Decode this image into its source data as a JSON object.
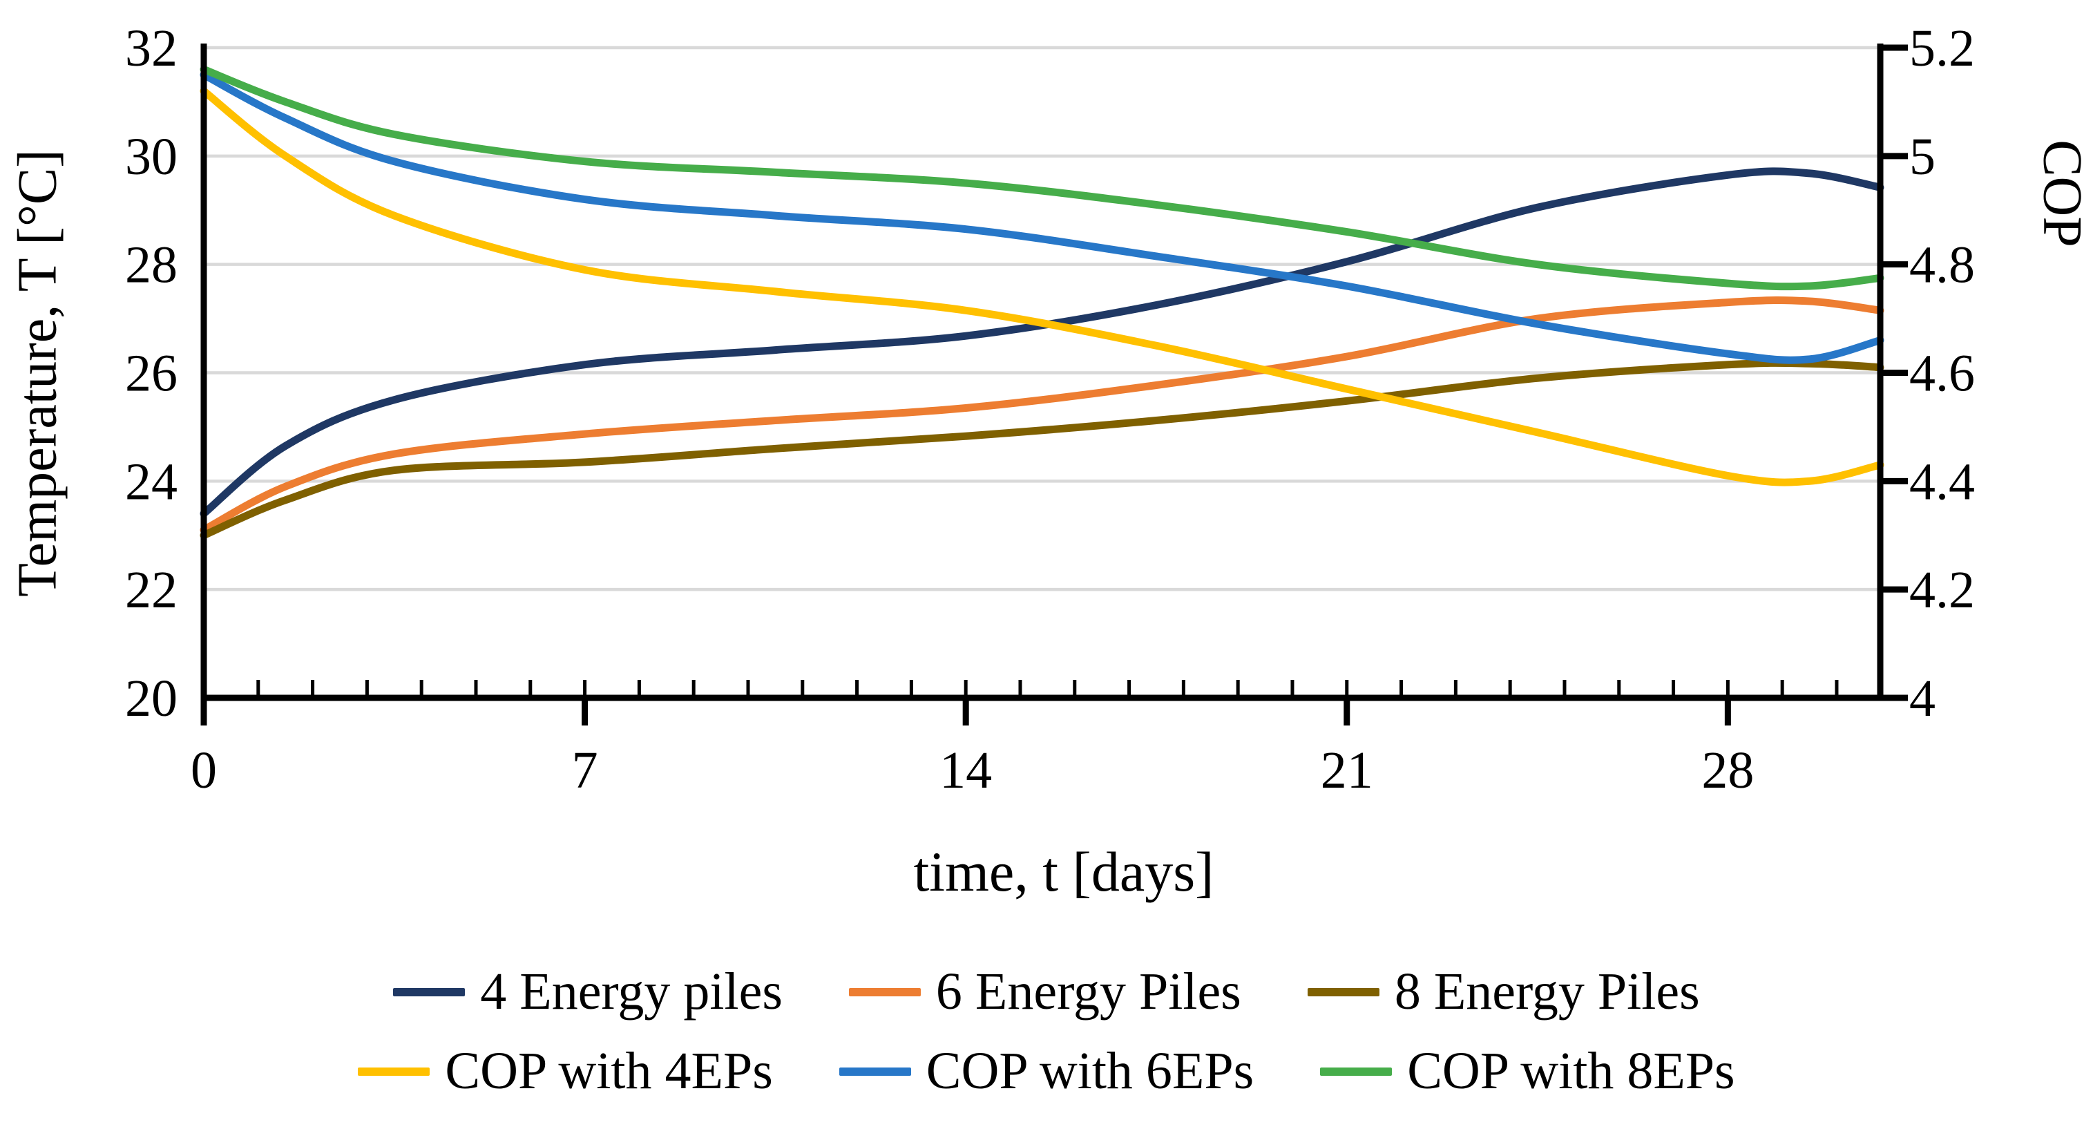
{
  "figure": {
    "background": "#ffffff",
    "left_axis": {
      "title": "Temperature, T [°C]",
      "tick_labels": [
        "32",
        "30",
        "28",
        "26",
        "24",
        "22",
        "20"
      ],
      "min": 20,
      "max": 32
    },
    "right_axis": {
      "title": "COP",
      "tick_labels": [
        "5.2",
        "5",
        "4.8",
        "4.6",
        "4.4",
        "4.2",
        "4"
      ],
      "min": 4,
      "max": 5.2
    },
    "x_axis": {
      "title": "time, t [days]",
      "tick_labels": [
        "0",
        "7",
        "14",
        "21",
        "28"
      ],
      "tick_values": [
        0,
        7,
        14,
        21,
        28
      ],
      "minor_tick_step": 1,
      "min": 0,
      "max": 30.8
    },
    "gridline_color": "#D9D9D9",
    "axis_color": "#000000"
  },
  "chart_data": {
    "type": "line",
    "title": "",
    "xlabel": "time, t [days]",
    "ylabel_left": "Temperature, T [°C]",
    "ylabel_right": "COP",
    "xlim": [
      0,
      30.8
    ],
    "ylim_left": [
      20,
      32
    ],
    "ylim_right": [
      4,
      5.2
    ],
    "grid": "horizontal",
    "legend_position": "bottom",
    "x": [
      0,
      1.5,
      3.5,
      7,
      10.5,
      14,
      17.5,
      21,
      24.5,
      28,
      29.5,
      30.8
    ],
    "series": [
      {
        "name": "4 Energy piles",
        "axis": "left",
        "color": "#1F3864",
        "values": [
          23.4,
          24.65,
          25.5,
          26.15,
          26.42,
          26.68,
          27.25,
          28.05,
          29.05,
          29.65,
          29.68,
          29.42
        ]
      },
      {
        "name": "6 Energy Piles",
        "axis": "left",
        "color": "#ED7D31",
        "values": [
          23.1,
          23.9,
          24.5,
          24.87,
          25.12,
          25.35,
          25.77,
          26.3,
          27.0,
          27.3,
          27.32,
          27.15
        ]
      },
      {
        "name": "8 Energy Piles",
        "axis": "left",
        "color": "#7F6000",
        "values": [
          23.0,
          23.65,
          24.2,
          24.35,
          24.6,
          24.83,
          25.12,
          25.48,
          25.9,
          26.15,
          26.17,
          26.1
        ]
      },
      {
        "name": "COP with 4EPs",
        "axis": "right",
        "color": "#FFC000",
        "values": [
          5.12,
          5.0,
          4.89,
          4.79,
          4.75,
          4.715,
          4.65,
          4.57,
          4.49,
          4.41,
          4.4,
          4.43
        ]
      },
      {
        "name": "COP with 6EPs",
        "axis": "right",
        "color": "#2777C8",
        "values": [
          5.15,
          5.07,
          4.99,
          4.92,
          4.89,
          4.865,
          4.815,
          4.76,
          4.69,
          4.635,
          4.625,
          4.66
        ]
      },
      {
        "name": "COP with 8EPs",
        "axis": "right",
        "color": "#46AD4A",
        "values": [
          5.16,
          5.1,
          5.04,
          4.99,
          4.97,
          4.95,
          4.91,
          4.86,
          4.8,
          4.765,
          4.76,
          4.775
        ]
      }
    ],
    "legend_rows": [
      [
        "4 Energy piles",
        "6 Energy Piles",
        "8 Energy Piles"
      ],
      [
        "COP with 4EPs",
        "COP with 6EPs",
        "COP with 8EPs"
      ]
    ]
  }
}
